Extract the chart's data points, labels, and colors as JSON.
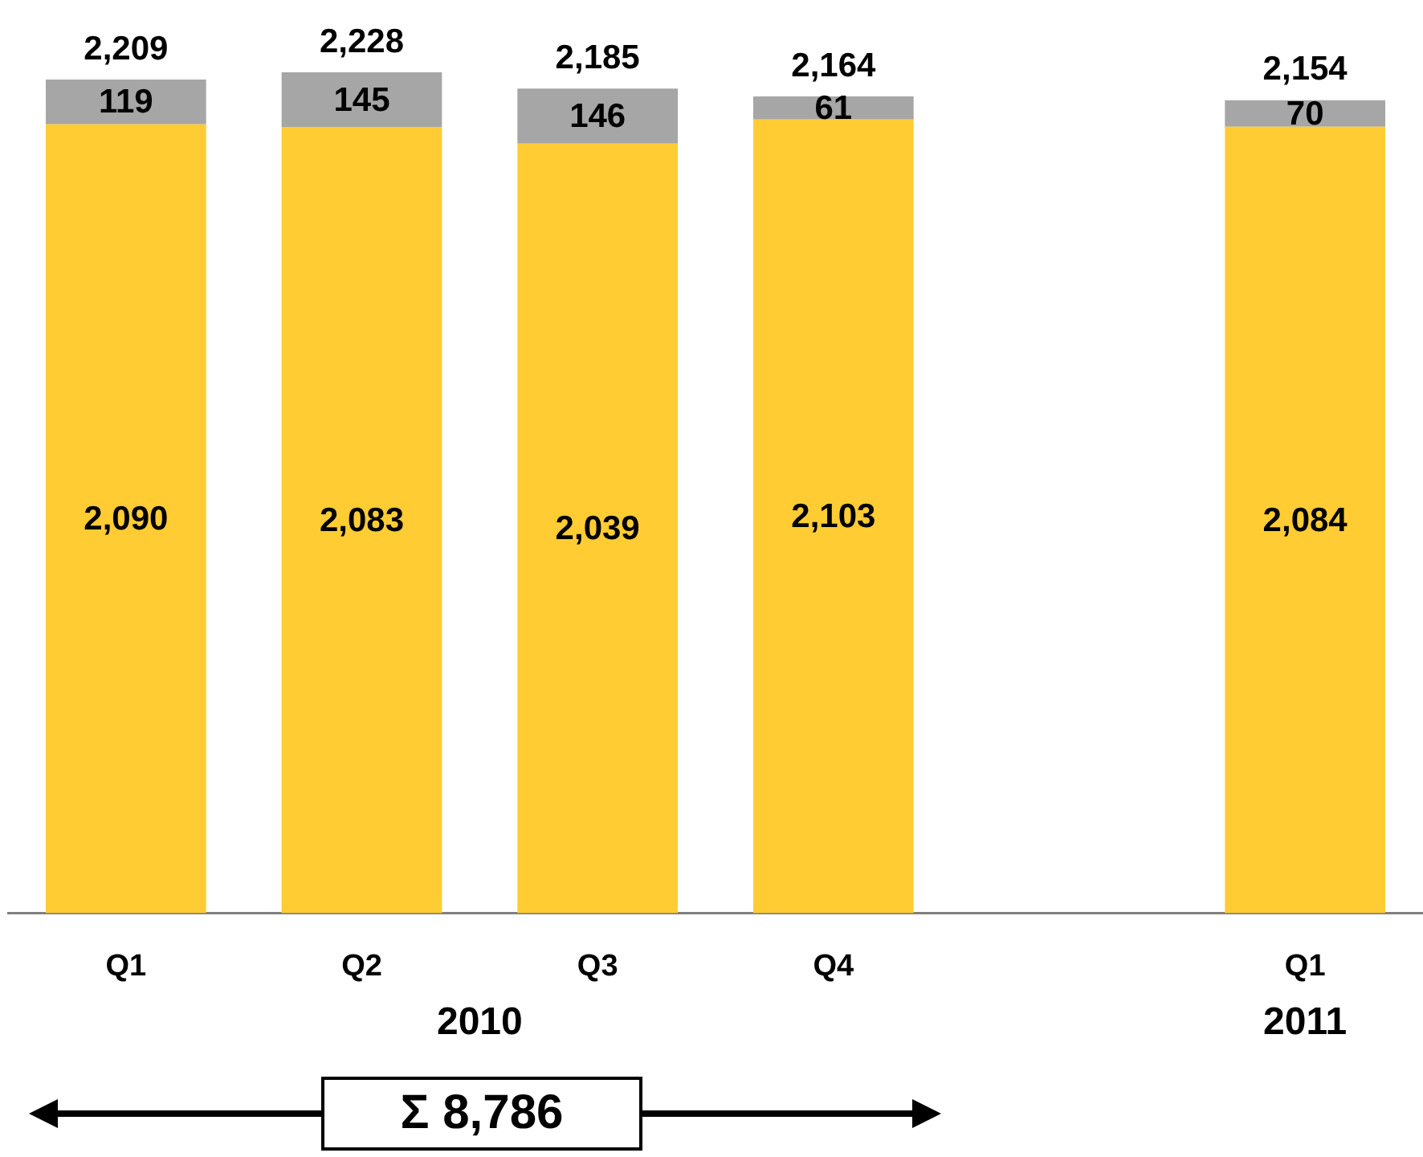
{
  "chart_data": {
    "type": "bar",
    "stacked": true,
    "categories": [
      "Q1",
      "Q2",
      "Q3",
      "Q4",
      null,
      "Q1"
    ],
    "series": [
      {
        "color": "#ffcc33",
        "values": [
          2090,
          2083,
          2039,
          2103,
          null,
          2084
        ],
        "value_labels": [
          "2,090",
          "2,083",
          "2,039",
          "2,103",
          null,
          "2,084"
        ]
      },
      {
        "color": "#a6a6a6",
        "values": [
          119,
          145,
          146,
          61,
          null,
          70
        ],
        "value_labels": [
          "119",
          "145",
          "146",
          "61",
          null,
          "70"
        ]
      }
    ],
    "totals": [
      "2,209",
      "2,228",
      "2,185",
      "2,164",
      null,
      "2,154"
    ],
    "annotations": [
      "2010",
      "2011",
      "Σ 8,786"
    ],
    "grid": false,
    "legend": false
  }
}
